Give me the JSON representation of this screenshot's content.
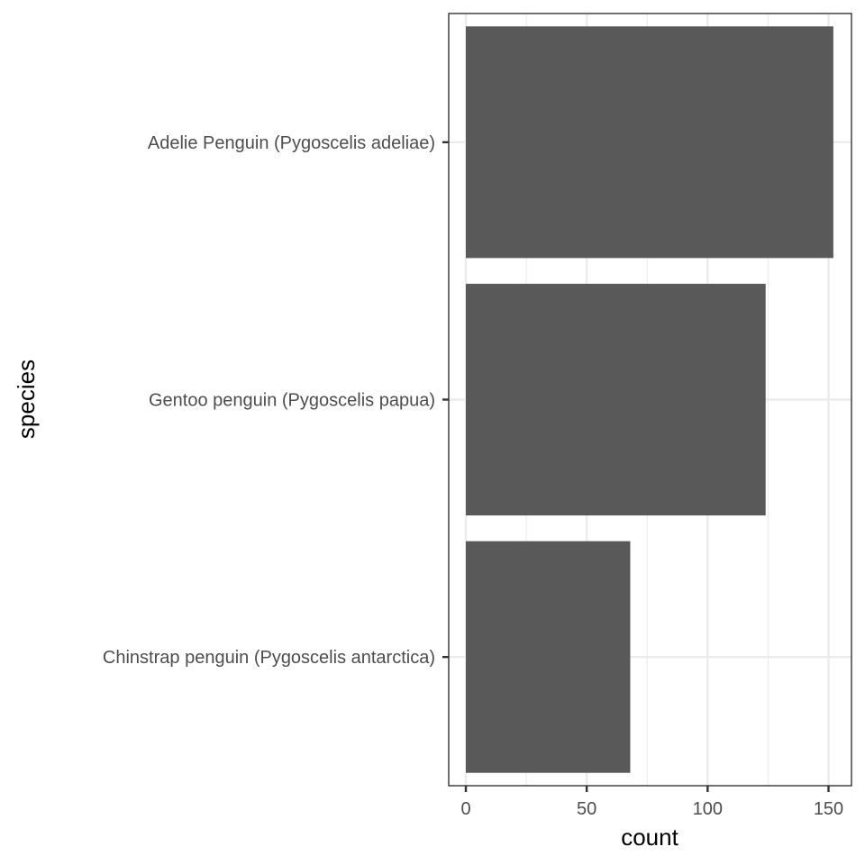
{
  "chart_data": {
    "type": "bar",
    "orientation": "horizontal",
    "categories": [
      "Adelie Penguin (Pygoscelis adeliae)",
      "Gentoo penguin (Pygoscelis papua)",
      "Chinstrap penguin (Pygoscelis antarctica)"
    ],
    "values": [
      152,
      124,
      68
    ],
    "xlabel": "count",
    "ylabel": "species",
    "xlim": [
      0,
      160
    ],
    "x_ticks": [
      0,
      50,
      100,
      150
    ],
    "grid": true,
    "bar_color": "#595959",
    "grid_color": "#ebebeb",
    "panel_border_color": "#333333"
  }
}
